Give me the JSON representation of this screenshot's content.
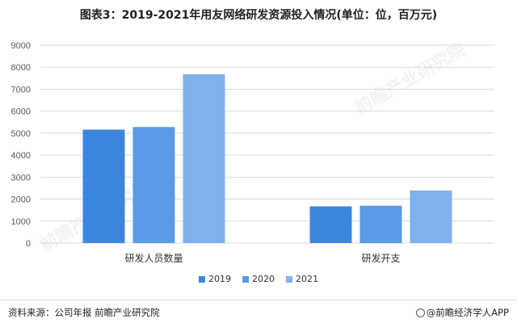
{
  "title": "图表3：2019-2021年用友网络研发资源投入情况(单位：位，百万元)",
  "source": "资料来源：公司年报 前瞻产业研究院",
  "credit": "@前瞻经济学人APP",
  "watermark": "前瞻产业研究院",
  "colors": {
    "2019": "#3d86e0",
    "2020": "#5b9be6",
    "2021": "#7fb1ef",
    "grid": "#d9d9d9",
    "axis_text": "#595959"
  },
  "chart_data": {
    "type": "bar",
    "title": "图表3：2019-2021年用友网络研发资源投入情况(单位：位，百万元)",
    "categories": [
      "研发人员数量",
      "研发开支"
    ],
    "series": [
      {
        "name": "2019",
        "values": [
          5160,
          1670
        ]
      },
      {
        "name": "2020",
        "values": [
          5280,
          1700
        ]
      },
      {
        "name": "2021",
        "values": [
          7680,
          2390
        ]
      }
    ],
    "ylim": [
      0,
      9000
    ],
    "yticks": [
      "0",
      "1000",
      "2000",
      "3000",
      "4000",
      "5000",
      "6000",
      "7000",
      "8000",
      "9000"
    ],
    "grid": true,
    "legend": "bottom",
    "xlabel": "",
    "ylabel": ""
  }
}
